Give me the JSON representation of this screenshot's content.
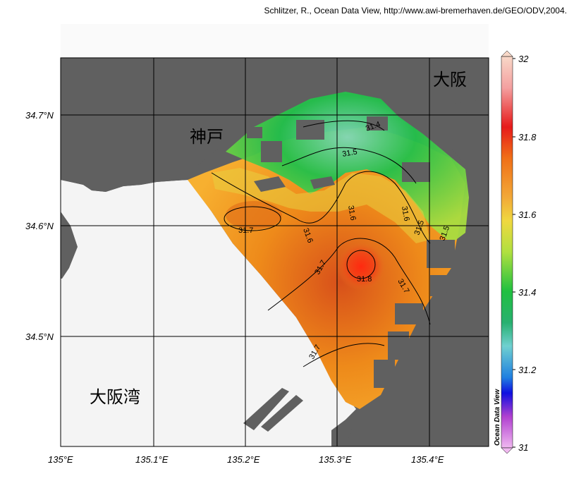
{
  "credit": "Schlitzer, R., Ocean Data View, http://www.awi-bremerhaven.de/GEO/ODV,2004.",
  "map": {
    "lon_ticks": [
      "135°E",
      "135.1°E",
      "135.2°E",
      "135.3°E",
      "135.4°E"
    ],
    "lat_ticks": [
      "34.7°N",
      "34.6°N",
      "34.5°N"
    ],
    "places": {
      "osaka": "大阪",
      "kobe": "神戸",
      "osaka_bay": "大阪湾"
    },
    "contour_labels": [
      "31.4",
      "31.5",
      "31.6",
      "31.6",
      "31.6",
      "31.7",
      "31.7",
      "31.7",
      "31.7",
      "31.8",
      "31.5",
      "31.5"
    ]
  },
  "colorbar": {
    "ticks": [
      "32",
      "31.8",
      "31.6",
      "31.4",
      "31.2",
      "31"
    ],
    "title": "Ocean Data View"
  },
  "colors": {
    "land": "#606060",
    "nodata": "#f4f4f4",
    "grid": "#000000"
  }
}
